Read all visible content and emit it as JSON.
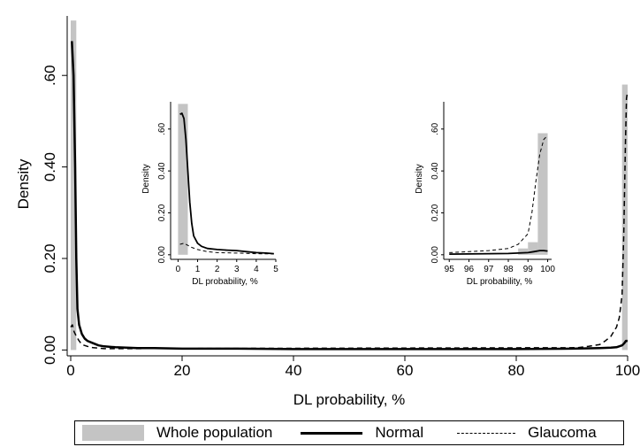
{
  "chart_data": [
    {
      "type": "area",
      "id": "main",
      "xlabel": "DL probability, %",
      "ylabel": "Density",
      "xlim": [
        0,
        100
      ],
      "ylim": [
        -0.005,
        0.73
      ],
      "xticks": [
        0,
        20,
        40,
        60,
        80,
        100
      ],
      "xtick_labels": [
        "0",
        "20",
        "40",
        "60",
        "80",
        "100"
      ],
      "yticks": [
        0,
        0.2,
        0.4,
        0.6
      ],
      "ytick_labels": [
        "0.00",
        "0.20",
        "0.40",
        ".60"
      ],
      "series": [
        {
          "name": "Whole population",
          "kind": "histogram",
          "bars": [
            {
              "x0": 0,
              "x1": 1,
              "y": 0.72
            },
            {
              "x0": 99,
              "x1": 100,
              "y": 0.58
            }
          ]
        },
        {
          "name": "Normal",
          "kind": "line",
          "style": "solid",
          "x": [
            0.2,
            0.5,
            0.8,
            1.0,
            1.2,
            1.5,
            2,
            2.5,
            3,
            4,
            5,
            6,
            8,
            10,
            12,
            15,
            20,
            25,
            30,
            40,
            50,
            60,
            70,
            80,
            90,
            95,
            97,
            98,
            99,
            99.4,
            99.7,
            100
          ],
          "y": [
            0.675,
            0.6,
            0.4,
            0.2,
            0.09,
            0.055,
            0.035,
            0.025,
            0.02,
            0.015,
            0.01,
            0.008,
            0.006,
            0.005,
            0.004,
            0.004,
            0.003,
            0.003,
            0.003,
            0.002,
            0.002,
            0.002,
            0.002,
            0.002,
            0.003,
            0.004,
            0.005,
            0.006,
            0.01,
            0.015,
            0.02,
            0.02
          ]
        },
        {
          "name": "Glaucoma",
          "kind": "line",
          "style": "dashed",
          "x": [
            0,
            0.3,
            0.6,
            1.0,
            1.5,
            2,
            3,
            4,
            5,
            6,
            91,
            93,
            95,
            96,
            97,
            98,
            98.5,
            99,
            99.3,
            99.6,
            99.8,
            100
          ],
          "y": [
            0.05,
            0.055,
            0.04,
            0.03,
            0.02,
            0.012,
            0.008,
            0.005,
            0.004,
            0.003,
            0.005,
            0.008,
            0.012,
            0.02,
            0.03,
            0.05,
            0.07,
            0.12,
            0.25,
            0.45,
            0.55,
            0.565
          ]
        }
      ]
    },
    {
      "type": "area",
      "id": "inset-left",
      "xlabel": "DL probability, %",
      "ylabel": "Density",
      "xlim": [
        -0.2,
        5.0
      ],
      "ylim": [
        -0.005,
        0.73
      ],
      "xticks": [
        0,
        1,
        2,
        3,
        4,
        5
      ],
      "xtick_labels": [
        "0",
        "1",
        "2",
        "3",
        "4",
        "5"
      ],
      "yticks": [
        0,
        0.2,
        0.4,
        0.6
      ],
      "ytick_labels": [
        "0.00",
        "0.20",
        "0.40",
        ".60"
      ],
      "series": [
        {
          "name": "Whole population",
          "kind": "histogram",
          "bars": [
            {
              "x0": 0,
              "x1": 0.5,
              "y": 0.72
            }
          ]
        },
        {
          "name": "Normal",
          "kind": "line",
          "style": "solid",
          "x": [
            0.1,
            0.2,
            0.3,
            0.4,
            0.5,
            0.6,
            0.7,
            0.8,
            1.0,
            1.2,
            1.5,
            2,
            2.5,
            3,
            3.5,
            4,
            4.5,
            4.9
          ],
          "y": [
            0.67,
            0.675,
            0.65,
            0.55,
            0.4,
            0.25,
            0.15,
            0.09,
            0.055,
            0.04,
            0.03,
            0.025,
            0.022,
            0.02,
            0.015,
            0.01,
            0.008,
            0.005
          ]
        },
        {
          "name": "Glaucoma",
          "kind": "line",
          "style": "dashed",
          "x": [
            0.1,
            0.3,
            0.5,
            0.7,
            1.0,
            1.5,
            2,
            3,
            4,
            4.9
          ],
          "y": [
            0.05,
            0.055,
            0.045,
            0.035,
            0.025,
            0.015,
            0.01,
            0.008,
            0.005,
            0.004
          ]
        }
      ]
    },
    {
      "type": "area",
      "id": "inset-right",
      "xlabel": "DL probability, %",
      "ylabel": "Density",
      "xlim": [
        94.9,
        100.2
      ],
      "ylim": [
        -0.005,
        0.73
      ],
      "xticks": [
        95,
        96,
        97,
        98,
        99,
        100
      ],
      "xtick_labels": [
        "95",
        "96",
        "97",
        "98",
        "99",
        "100"
      ],
      "yticks": [
        0,
        0.2,
        0.4,
        0.6
      ],
      "ytick_labels": [
        "0.00",
        "0.20",
        "0.40",
        ".60"
      ],
      "series": [
        {
          "name": "Whole population",
          "kind": "histogram",
          "bars": [
            {
              "x0": 98.5,
              "x1": 99.0,
              "y": 0.03
            },
            {
              "x0": 99.0,
              "x1": 99.5,
              "y": 0.06
            },
            {
              "x0": 99.5,
              "x1": 100.0,
              "y": 0.58
            }
          ]
        },
        {
          "name": "Normal",
          "kind": "line",
          "style": "solid",
          "x": [
            95,
            96,
            97,
            98,
            98.5,
            99,
            99.3,
            99.6,
            99.8,
            100
          ],
          "y": [
            0.003,
            0.004,
            0.005,
            0.006,
            0.008,
            0.01,
            0.015,
            0.02,
            0.02,
            0.018
          ]
        },
        {
          "name": "Glaucoma",
          "kind": "line",
          "style": "dashed",
          "x": [
            95,
            96,
            97,
            98,
            98.5,
            99,
            99.2,
            99.4,
            99.6,
            99.8,
            100
          ],
          "y": [
            0.01,
            0.015,
            0.02,
            0.03,
            0.05,
            0.1,
            0.2,
            0.35,
            0.48,
            0.55,
            0.57
          ]
        }
      ]
    }
  ],
  "legend": {
    "items": [
      {
        "label": "Whole population",
        "symbol": "gray-fill-swatch"
      },
      {
        "label": "Normal",
        "symbol": "solid-line-swatch"
      },
      {
        "label": "Glaucoma",
        "symbol": "dashed-line-swatch"
      }
    ]
  },
  "colors": {
    "histogram": "#c4c4c4",
    "line": "#000000"
  }
}
